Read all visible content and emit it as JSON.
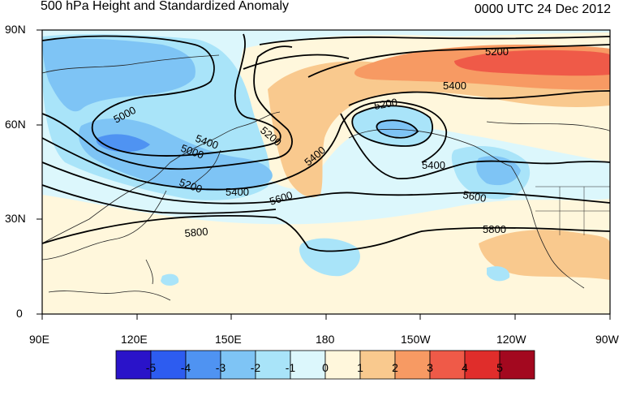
{
  "header": {
    "title": "500 hPa Height and Standardized Anomaly",
    "valid_time": "0000 UTC 24 Dec 2012"
  },
  "axes": {
    "lat_ticks": [
      "90N",
      "60N",
      "30N",
      "0"
    ],
    "lon_ticks": [
      "90E",
      "120E",
      "150E",
      "180",
      "150W",
      "120W",
      "90W"
    ]
  },
  "contours": {
    "interval": 200,
    "labels": [
      "5000",
      "5000",
      "5200",
      "5200",
      "5200",
      "5200",
      "5400",
      "5400",
      "5400",
      "5400",
      "5400",
      "5600",
      "5600",
      "5800",
      "5800"
    ]
  },
  "colorbar": {
    "labels": [
      "-5",
      "-4",
      "-3",
      "-2",
      "-1",
      "0",
      "1",
      "2",
      "3",
      "4",
      "5"
    ],
    "colors": [
      "#2a13c9",
      "#2d5cf0",
      "#4f93f2",
      "#7ec4f5",
      "#a9e4f9",
      "#dcf7fc",
      "#fff7dc",
      "#f9c98e",
      "#f79a63",
      "#ef5a48",
      "#e02d2b",
      "#a3081f"
    ]
  },
  "map": {
    "projection": "cylindrical equidistant",
    "ocean_color": "#ffffff",
    "coastline_color": "#222222"
  }
}
